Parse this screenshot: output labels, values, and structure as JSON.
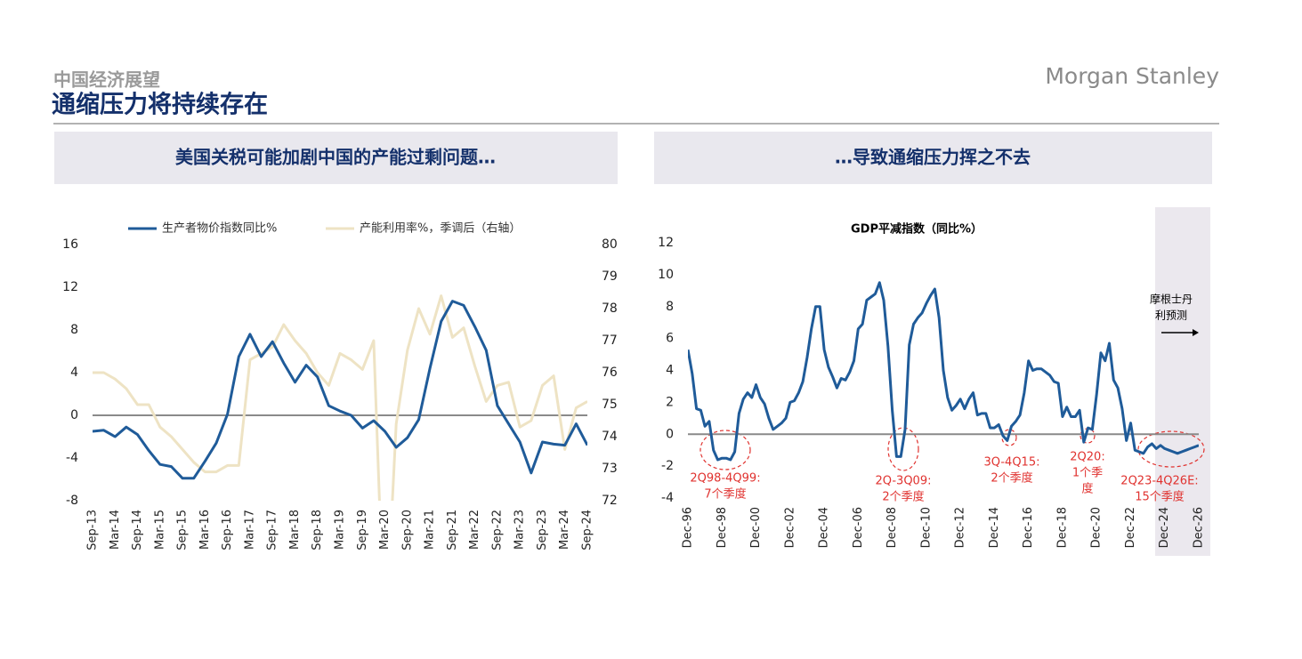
{
  "header": {
    "subtitle": "中国经济展望",
    "title": "通缩压力将持续存在",
    "logo": "Morgan Stanley"
  },
  "panels": [
    {
      "title": "美国关税可能加剧中国的产能过剩问题…"
    },
    {
      "title": "…导致通缩压力挥之不去"
    }
  ],
  "chart_data": [
    {
      "type": "line",
      "legend": "top",
      "categories": [
        "Sep-13",
        null,
        "Mar-14",
        null,
        "Sep-14",
        null,
        "Mar-15",
        null,
        "Sep-15",
        null,
        "Mar-16",
        null,
        "Sep-16",
        null,
        "Mar-17",
        null,
        "Sep-17",
        null,
        "Mar-18",
        null,
        "Sep-18",
        null,
        "Mar-19",
        null,
        "Sep-19",
        null,
        "Mar-20",
        null,
        "Sep-20",
        null,
        "Mar-21",
        null,
        "Sep-21",
        null,
        "Mar-22",
        null,
        "Sep-22",
        null,
        "Mar-23",
        null,
        "Sep-23",
        null,
        "Mar-24",
        null,
        "Sep-24"
      ],
      "ylim": [
        -8,
        16
      ],
      "yticks": [
        -8,
        -4,
        0,
        4,
        8,
        12,
        16
      ],
      "y2lim": [
        72,
        80
      ],
      "y2ticks": [
        72,
        73,
        74,
        75,
        76,
        77,
        78,
        79,
        80
      ],
      "zero_line": true,
      "series": [
        {
          "name": "生产者物价指数同比%",
          "color": "#1f5b99",
          "values": [
            -1.5,
            -1.4,
            -2.0,
            -1.1,
            -1.8,
            -3.3,
            -4.6,
            -4.8,
            -5.9,
            -5.9,
            -4.3,
            -2.6,
            0.1,
            5.5,
            7.6,
            5.5,
            6.9,
            4.9,
            3.1,
            4.7,
            3.6,
            0.9,
            0.4,
            0.0,
            -1.2,
            -0.5,
            -1.5,
            -3.0,
            -2.1,
            -0.4,
            4.4,
            8.8,
            10.7,
            10.3,
            8.3,
            6.1,
            0.9,
            -0.8,
            -2.5,
            -5.4,
            -2.5,
            -2.7,
            -2.8,
            -0.8,
            -2.8
          ]
        },
        {
          "name": "产能利用率%，季调后（右轴）",
          "color": "#eee3c4",
          "axis": "y2",
          "values": [
            76.0,
            76.0,
            75.8,
            75.5,
            75.0,
            75.0,
            74.3,
            74.0,
            73.6,
            73.2,
            72.9,
            72.9,
            73.1,
            73.1,
            76.4,
            76.6,
            76.8,
            77.5,
            77.0,
            76.6,
            76.0,
            75.6,
            76.6,
            76.4,
            76.1,
            77.0,
            67.3,
            74.4,
            76.7,
            78.0,
            77.2,
            78.4,
            77.1,
            77.4,
            76.2,
            75.1,
            75.6,
            75.7,
            74.3,
            74.5,
            75.6,
            75.9,
            73.6,
            74.9,
            75.1
          ]
        }
      ]
    },
    {
      "type": "line",
      "title": "GDP平减指数（同比%）",
      "categories": [
        "Dec-96",
        null,
        null,
        null,
        null,
        null,
        null,
        null,
        "Dec-98",
        null,
        null,
        null,
        null,
        null,
        null,
        null,
        "Dec-00",
        null,
        null,
        null,
        null,
        null,
        null,
        null,
        "Dec-02",
        null,
        null,
        null,
        null,
        null,
        null,
        null,
        "Dec-04",
        null,
        null,
        null,
        null,
        null,
        null,
        null,
        "Dec-06",
        null,
        null,
        null,
        null,
        null,
        null,
        null,
        "Dec-08",
        null,
        null,
        null,
        null,
        null,
        null,
        null,
        "Dec-10",
        null,
        null,
        null,
        null,
        null,
        null,
        null,
        "Dec-12",
        null,
        null,
        null,
        null,
        null,
        null,
        null,
        "Dec-14",
        null,
        null,
        null,
        null,
        null,
        null,
        null,
        "Dec-16",
        null,
        null,
        null,
        null,
        null,
        null,
        null,
        "Dec-18",
        null,
        null,
        null,
        null,
        null,
        null,
        null,
        "Dec-20",
        null,
        null,
        null,
        null,
        null,
        null,
        null,
        "Dec-22",
        null,
        null,
        null,
        null,
        null,
        null,
        null,
        "Dec-24",
        null,
        null,
        null,
        null,
        null,
        null,
        null,
        "Dec-26"
      ],
      "ylim": [
        -4,
        12
      ],
      "yticks": [
        -4,
        -2,
        0,
        2,
        4,
        6,
        8,
        10,
        12
      ],
      "zero_line": true,
      "color": "#1f5b99",
      "values": [
        5.3,
        3.8,
        1.6,
        1.5,
        0.5,
        0.8,
        -1.0,
        -1.6,
        -1.5,
        -1.5,
        -1.6,
        -1.1,
        1.3,
        2.2,
        2.6,
        2.3,
        3.1,
        2.3,
        1.9,
        1.0,
        0.3,
        0.5,
        0.7,
        1.0,
        2.0,
        2.1,
        2.6,
        3.3,
        4.8,
        6.6,
        8.0,
        8.0,
        5.3,
        4.2,
        3.6,
        2.9,
        3.5,
        3.4,
        3.9,
        4.6,
        6.6,
        6.9,
        8.4,
        8.6,
        8.8,
        9.5,
        8.4,
        5.5,
        1.5,
        -1.4,
        -1.4,
        0.3,
        5.6,
        6.9,
        7.3,
        7.6,
        8.2,
        8.7,
        9.1,
        7.3,
        4.0,
        2.3,
        1.5,
        1.8,
        2.2,
        1.6,
        2.2,
        2.6,
        1.2,
        1.3,
        1.3,
        0.4,
        0.4,
        0.6,
        -0.1,
        -0.4,
        0.5,
        0.8,
        1.2,
        2.6,
        4.6,
        4.0,
        4.1,
        4.1,
        3.9,
        3.7,
        3.3,
        3.2,
        1.1,
        1.7,
        1.1,
        1.1,
        1.5,
        -0.5,
        0.4,
        0.3,
        2.5,
        5.1,
        4.6,
        5.7,
        3.4,
        2.9,
        1.6,
        -0.4,
        0.7,
        -1.0,
        -1.1,
        -1.2,
        -0.8,
        -0.6,
        -0.9,
        -0.7,
        -0.9,
        -1.0,
        -1.1,
        -1.2,
        -1.1,
        -1.0,
        -0.9,
        -0.8,
        -0.7
      ],
      "forecast_note": {
        "lines": [
          "摩根士丹",
          "利预测"
        ]
      },
      "annotations": [
        {
          "lines": [
            "2Q98-4Q99:",
            "7个季度"
          ]
        },
        {
          "lines": [
            "2Q-3Q09:",
            "2个季度"
          ]
        },
        {
          "lines": [
            "3Q-4Q15:",
            "2个季度"
          ]
        },
        {
          "lines": [
            "2Q20:",
            "1个季",
            "度"
          ]
        },
        {
          "lines": [
            "2Q23-4Q26E:",
            "15个季度"
          ]
        }
      ]
    }
  ]
}
